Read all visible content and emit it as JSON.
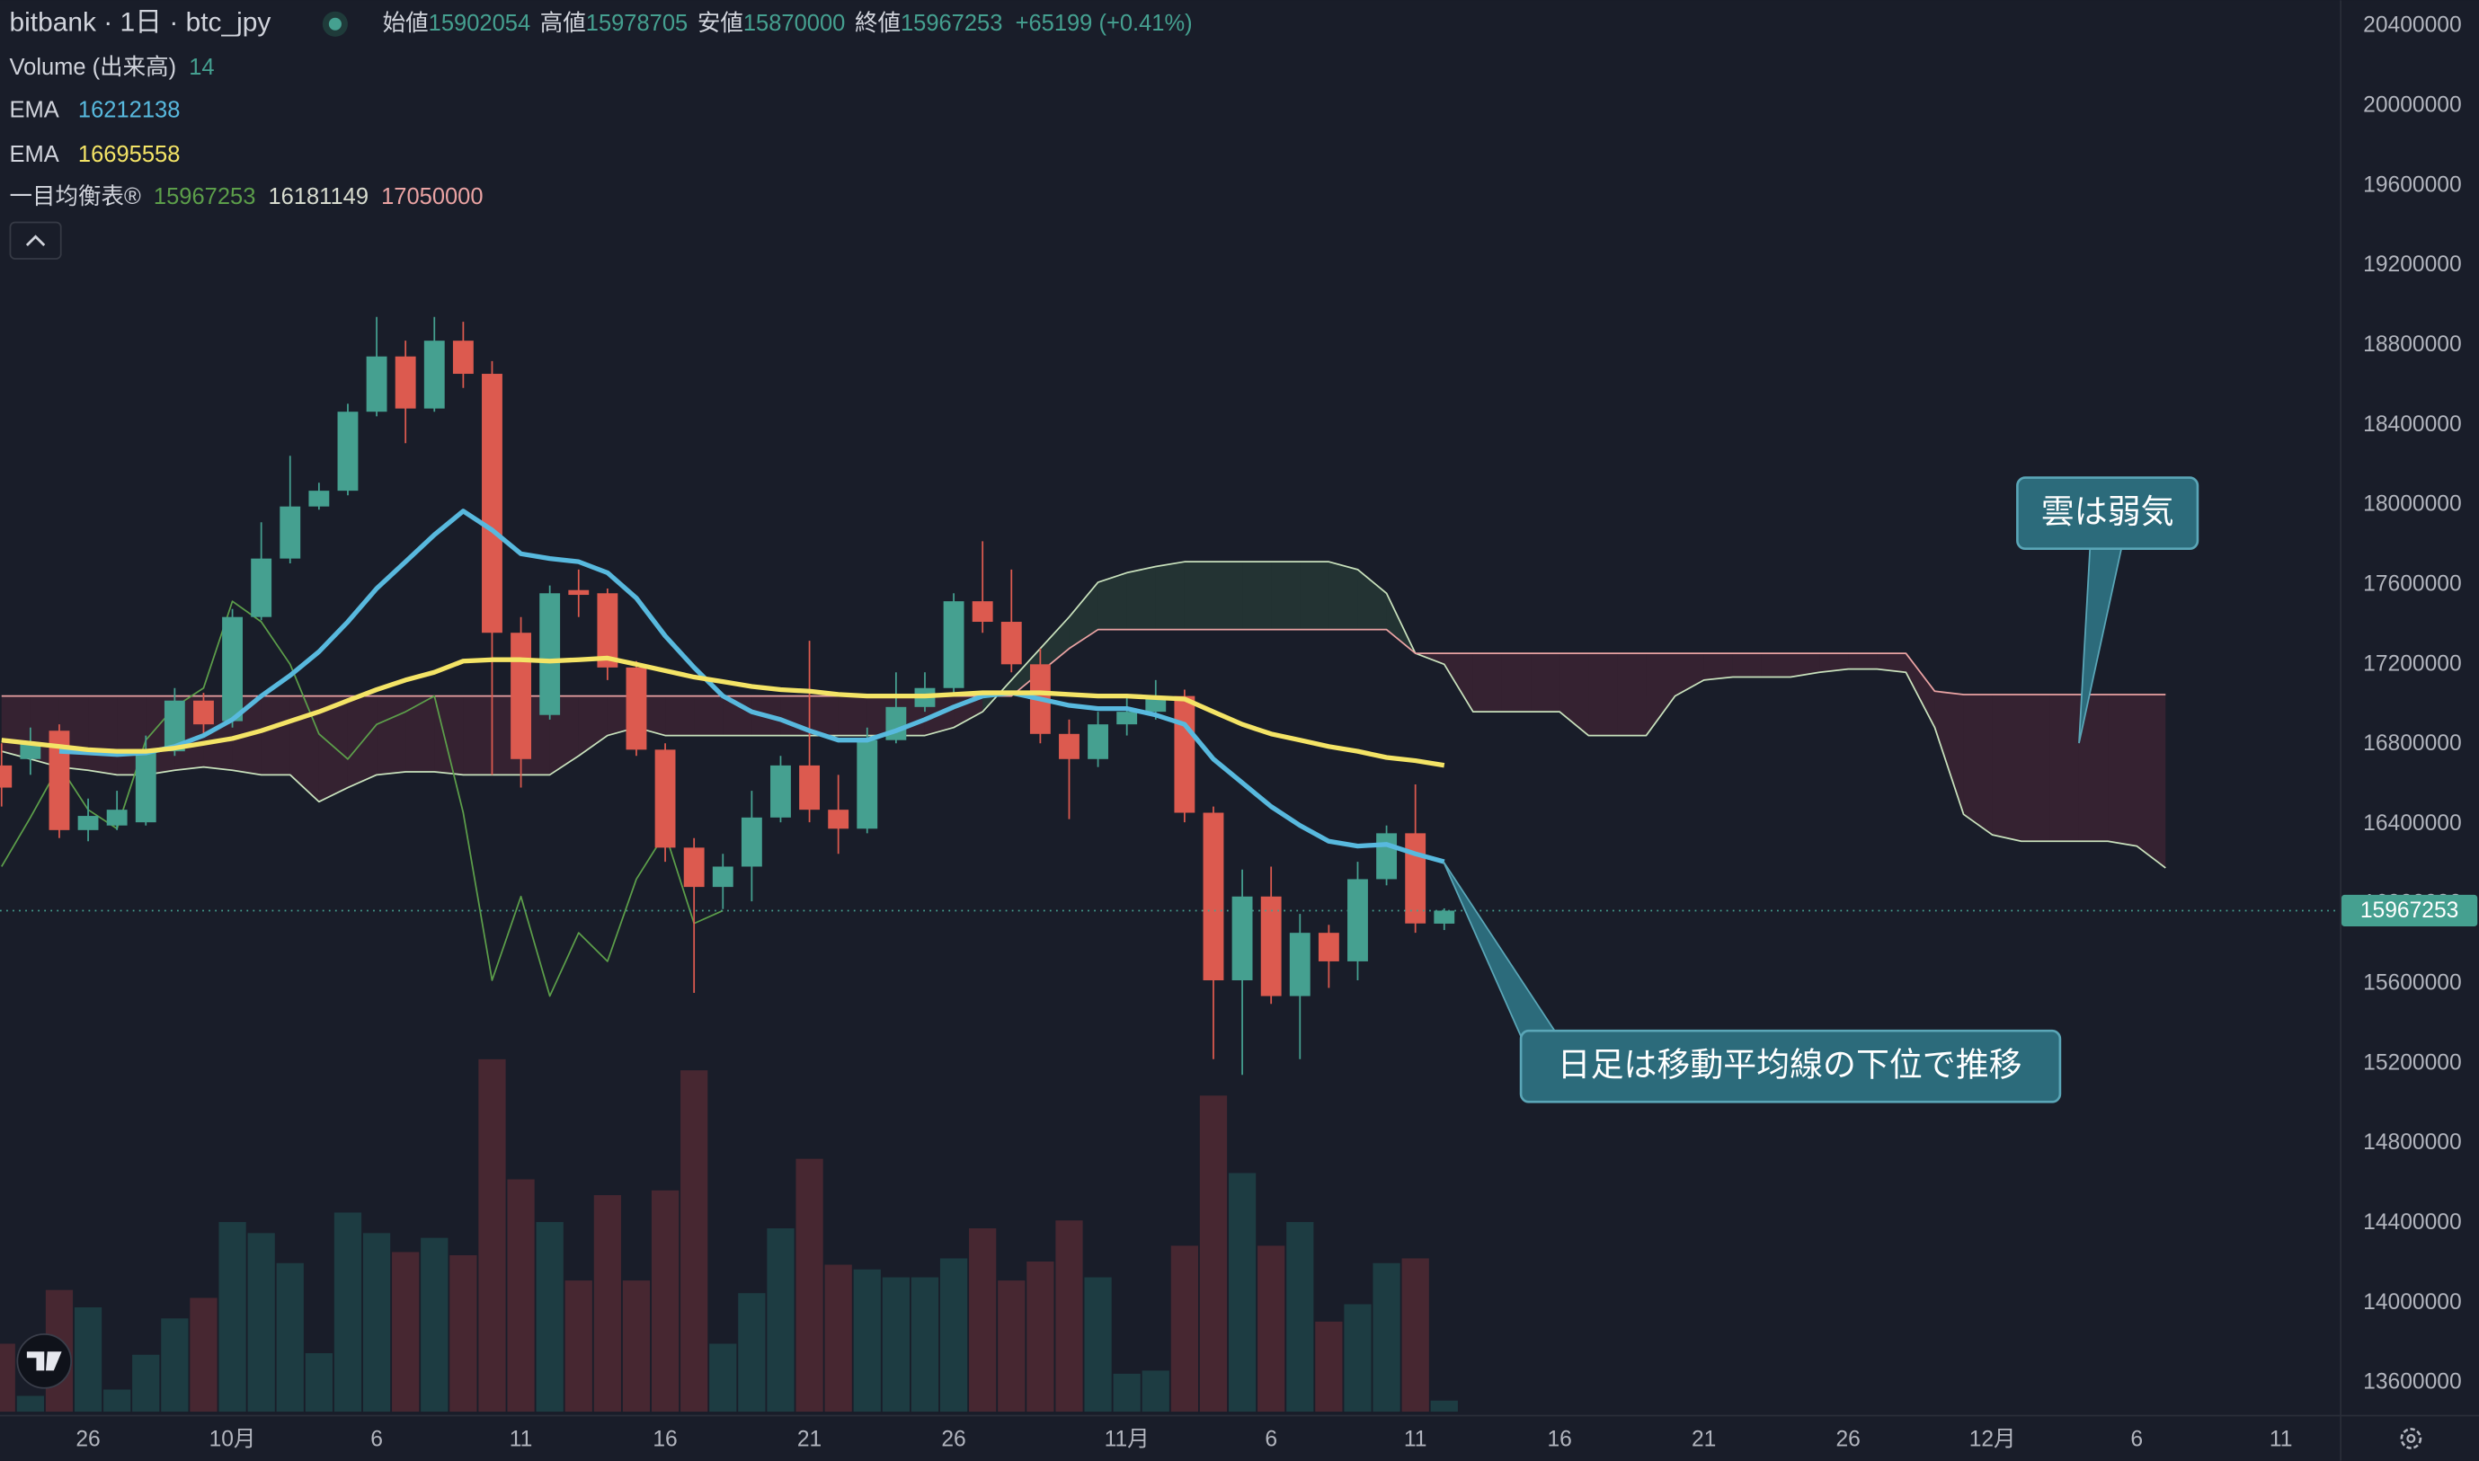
{
  "header": {
    "symbol": "bitbank · 1日 · btc_jpy",
    "open_label": "始値",
    "high_label": "高値",
    "low_label": "安値",
    "close_label": "終値",
    "change": "+65199 (+0.41%)"
  },
  "chart_data": {
    "type": "candlestick",
    "categories": [
      null,
      null,
      null,
      "26",
      null,
      null,
      null,
      null,
      "10月",
      null,
      null,
      null,
      null,
      "6",
      null,
      null,
      null,
      null,
      "11",
      null,
      null,
      null,
      null,
      "16",
      null,
      null,
      null,
      null,
      "21",
      null,
      null,
      null,
      null,
      "26",
      null,
      null,
      null,
      null,
      null,
      "11月",
      null,
      null,
      null,
      null,
      "6",
      null,
      null,
      null,
      null,
      "11",
      null,
      null,
      null,
      null,
      "16",
      null,
      null,
      null,
      null,
      "21",
      null,
      null,
      null,
      null,
      "26",
      null,
      null,
      null,
      null,
      "12月",
      null,
      null,
      null,
      null,
      "6",
      null,
      null,
      null,
      null,
      "11"
    ],
    "open": [
      16695000,
      16727000,
      16869000,
      16371000,
      16394000,
      16410000,
      16766000,
      17020000,
      16917000,
      17439000,
      17732000,
      17993000,
      18072000,
      18468000,
      18745000,
      18484000,
      18824000,
      18658000,
      17360000,
      16948000,
      17574000,
      17558000,
      17186000,
      16774000,
      16283000,
      16086000,
      16188000,
      16434000,
      16695000,
      16473000,
      16378000,
      16822000,
      16988000,
      17083000,
      17518000,
      17415000,
      17202000,
      16853000,
      16727000,
      16901000,
      16964000,
      17043000,
      16458000,
      15618000,
      16038000,
      15539000,
      15856000,
      15713000,
      16125000,
      16355000,
      15902054,
      null,
      null,
      null,
      null,
      null,
      null,
      null,
      null,
      null,
      null,
      null,
      null,
      null,
      null,
      null,
      null,
      null,
      null,
      null,
      null,
      null,
      null,
      null,
      null,
      null,
      null,
      null,
      null,
      null
    ],
    "high": [
      16806000,
      16885000,
      16901000,
      16529000,
      16568000,
      16845000,
      17083000,
      17059000,
      17479000,
      17914000,
      18247000,
      18112000,
      18508000,
      18943000,
      18824000,
      18943000,
      18919000,
      18722000,
      17439000,
      17597000,
      17677000,
      17582000,
      17218000,
      16806000,
      16331000,
      16252000,
      16568000,
      16743000,
      17320000,
      16648000,
      16885000,
      17162000,
      17162000,
      17558000,
      17819000,
      17677000,
      17281000,
      16925000,
      16964000,
      17043000,
      17123000,
      17075000,
      16489000,
      16173000,
      16188000,
      15951000,
      15896000,
      16212000,
      16394000,
      16600000,
      15978705,
      null,
      null,
      null,
      null,
      null,
      null,
      null,
      null,
      null,
      null,
      null,
      null,
      null,
      null,
      null,
      null,
      null,
      null,
      null,
      null,
      null,
      null,
      null,
      null,
      null,
      null,
      null,
      null,
      null
    ],
    "low": [
      16489000,
      16648000,
      16331000,
      16315000,
      16371000,
      16394000,
      16743000,
      16845000,
      16885000,
      17423000,
      17708000,
      17977000,
      18049000,
      18445000,
      18310000,
      18468000,
      18587000,
      16648000,
      16584000,
      16925000,
      17439000,
      17123000,
      16743000,
      16212000,
      15555000,
      15975000,
      16014000,
      16410000,
      16410000,
      16252000,
      16355000,
      16806000,
      16964000,
      17043000,
      17360000,
      17162000,
      16806000,
      16426000,
      16687000,
      16845000,
      16925000,
      16410000,
      15223000,
      15144000,
      15500000,
      15223000,
      15580000,
      15618000,
      16094000,
      15856000,
      15870000,
      null,
      null,
      null,
      null,
      null,
      null,
      null,
      null,
      null,
      null,
      null,
      null,
      null,
      null,
      null,
      null,
      null,
      null,
      null,
      null,
      null,
      null,
      null,
      null,
      null,
      null,
      null,
      null,
      null
    ],
    "close": [
      16584000,
      16806000,
      16371000,
      16442000,
      16473000,
      16766000,
      17020000,
      16901000,
      17439000,
      17732000,
      17993000,
      18072000,
      18468000,
      18745000,
      18484000,
      18824000,
      18658000,
      17360000,
      16727000,
      17558000,
      17550000,
      17186000,
      16774000,
      16283000,
      16086000,
      16188000,
      16434000,
      16695000,
      16473000,
      16378000,
      16822000,
      16988000,
      17083000,
      17518000,
      17415000,
      17202000,
      16853000,
      16727000,
      16901000,
      16964000,
      17043000,
      16458000,
      15618000,
      16038000,
      15539000,
      15856000,
      15713000,
      16125000,
      16355000,
      15903000,
      15967253,
      null,
      null,
      null,
      null,
      null,
      null,
      null,
      null,
      null,
      null,
      null,
      null,
      null,
      null,
      null,
      null,
      null,
      null,
      null,
      null,
      null,
      null,
      null,
      null,
      null,
      null,
      null,
      null,
      null
    ],
    "up_color": "#45a090",
    "down_color": "#dc5a4f",
    "volume": {
      "name": "Volume (出来高)",
      "up_color": "#1d3c42",
      "down_color": "#472731",
      "values": [
        86,
        20,
        154,
        132,
        28,
        72,
        118,
        144,
        240,
        226,
        188,
        74,
        252,
        226,
        202,
        220,
        198,
        446,
        294,
        240,
        166,
        274,
        166,
        280,
        432,
        86,
        150,
        232,
        320,
        186,
        180,
        170,
        170,
        194,
        232,
        166,
        190,
        242,
        170,
        48,
        52,
        210,
        400,
        302,
        210,
        240,
        114,
        136,
        188,
        194,
        14,
        null,
        null,
        null,
        null,
        null,
        null,
        null,
        null,
        null,
        null,
        null,
        null,
        null,
        null,
        null,
        null,
        null,
        null,
        null,
        null,
        null,
        null,
        null,
        null,
        null,
        null,
        null,
        null,
        null
      ]
    },
    "series": [
      {
        "name": "EMA",
        "color": "#58b9de",
        "values": [
          null,
          null,
          16766000,
          16758000,
          16750000,
          16758000,
          16790000,
          16845000,
          16925000,
          17043000,
          17146000,
          17265000,
          17415000,
          17582000,
          17716000,
          17851000,
          17970000,
          17875000,
          17756000,
          17732000,
          17716000,
          17661000,
          17534000,
          17344000,
          17186000,
          17043000,
          16964000,
          16925000,
          16869000,
          16822000,
          16822000,
          16869000,
          16925000,
          16988000,
          17043000,
          17059000,
          17028000,
          16996000,
          16980000,
          16980000,
          16948000,
          16901000,
          16727000,
          16608000,
          16489000,
          16394000,
          16315000,
          16291000,
          16299000,
          16252000,
          16212138,
          null,
          null,
          null,
          null,
          null,
          null,
          null,
          null,
          null,
          null,
          null,
          null,
          null,
          null,
          null,
          null,
          null,
          null,
          null,
          null,
          null,
          null,
          null,
          null,
          null,
          null,
          null,
          null,
          null
        ]
      },
      {
        "name": "EMA",
        "color": "#f4e466",
        "values": [
          16822000,
          16806000,
          16790000,
          16774000,
          16766000,
          16766000,
          16782000,
          16806000,
          16830000,
          16869000,
          16917000,
          16964000,
          17020000,
          17075000,
          17123000,
          17162000,
          17218000,
          17225000,
          17225000,
          17218000,
          17225000,
          17233000,
          17202000,
          17170000,
          17138000,
          17115000,
          17091000,
          17075000,
          17067000,
          17051000,
          17043000,
          17043000,
          17043000,
          17051000,
          17059000,
          17059000,
          17059000,
          17051000,
          17043000,
          17043000,
          17035000,
          17028000,
          16964000,
          16901000,
          16853000,
          16822000,
          16790000,
          16766000,
          16735000,
          16719000,
          16695558,
          null,
          null,
          null,
          null,
          null,
          null,
          null,
          null,
          null,
          null,
          null,
          null,
          null,
          null,
          null,
          null,
          null,
          null,
          null,
          null,
          null,
          null,
          null,
          null,
          null,
          null,
          null,
          null,
          null
        ]
      }
    ],
    "ichimoku": {
      "name": "一目均衡表®",
      "cloud_up_color": "rgba(60,110,80,0.28)",
      "cloud_down_color": "rgba(120,45,70,0.3)",
      "lagging": {
        "color": "#5c9e4a",
        "values": [
          16188000,
          16434000,
          16695000,
          16473000,
          16378000,
          16822000,
          16988000,
          17083000,
          17518000,
          17415000,
          17202000,
          16853000,
          16727000,
          16901000,
          16964000,
          17043000,
          16458000,
          15618000,
          16038000,
          15539000,
          15856000,
          15713000,
          16125000,
          16355000,
          15903000,
          15967253,
          null,
          null,
          null,
          null,
          null,
          null,
          null,
          null,
          null,
          null,
          null,
          null,
          null,
          null,
          null,
          null,
          null,
          null,
          null,
          null,
          null,
          null,
          null,
          null,
          null,
          null,
          null,
          null,
          null,
          null,
          null,
          null,
          null,
          null,
          null,
          null,
          null,
          null,
          null,
          null,
          null,
          null,
          null,
          null,
          null,
          null,
          null,
          null,
          null,
          null,
          null,
          null,
          null,
          null
        ]
      },
      "span_a": {
        "color": "#c9e2bd",
        "values": [
          16766000,
          16727000,
          16687000,
          16671000,
          16648000,
          16648000,
          16671000,
          16687000,
          16671000,
          16648000,
          16648000,
          16513000,
          16584000,
          16648000,
          16663000,
          16663000,
          16648000,
          16648000,
          16648000,
          16648000,
          16743000,
          16845000,
          16885000,
          16845000,
          16845000,
          16845000,
          16845000,
          16845000,
          16845000,
          16845000,
          16845000,
          16845000,
          16845000,
          16885000,
          16964000,
          17123000,
          17281000,
          17439000,
          17613000,
          17661000,
          17692000,
          17716000,
          17716000,
          17716000,
          17716000,
          17716000,
          17716000,
          17677000,
          17558000,
          17257000,
          17202000,
          16964000,
          16964000,
          16964000,
          16964000,
          16845000,
          16845000,
          16845000,
          17043000,
          17123000,
          17138000,
          17138000,
          17138000,
          17162000,
          17178000,
          17178000,
          17162000,
          16885000,
          16450000,
          16347000,
          16315000,
          16315000,
          16315000,
          16315000,
          16291000,
          16181149,
          null,
          null,
          null,
          null
        ]
      },
      "span_b": {
        "color": "#eaa3a3",
        "values": [
          17043000,
          17043000,
          17043000,
          17043000,
          17043000,
          17043000,
          17043000,
          17043000,
          17043000,
          17043000,
          17043000,
          17043000,
          17043000,
          17043000,
          17043000,
          17043000,
          17043000,
          17043000,
          17043000,
          17043000,
          17043000,
          17043000,
          17043000,
          17043000,
          17043000,
          17043000,
          17043000,
          17043000,
          17043000,
          17043000,
          17043000,
          17043000,
          17043000,
          17043000,
          17043000,
          17043000,
          17162000,
          17281000,
          17376000,
          17376000,
          17376000,
          17376000,
          17376000,
          17376000,
          17376000,
          17376000,
          17376000,
          17376000,
          17376000,
          17257000,
          17257000,
          17257000,
          17257000,
          17257000,
          17257000,
          17257000,
          17257000,
          17257000,
          17257000,
          17257000,
          17257000,
          17257000,
          17257000,
          17257000,
          17257000,
          17257000,
          17257000,
          17067000,
          17050000,
          17050000,
          17050000,
          17050000,
          17050000,
          17050000,
          17050000,
          17050000,
          null,
          null,
          null,
          null
        ]
      }
    },
    "annotations": [
      "雲は弱気",
      "日足は移動平均線の下位で推移"
    ],
    "ylim": [
      13440000,
      20530000
    ],
    "yticks": [
      13600000,
      14000000,
      14400000,
      14800000,
      15200000,
      15600000,
      16000000,
      16400000,
      16800000,
      17200000,
      17600000,
      18000000,
      18400000,
      18800000,
      19200000,
      19600000,
      20000000,
      20400000
    ],
    "grid": false
  }
}
